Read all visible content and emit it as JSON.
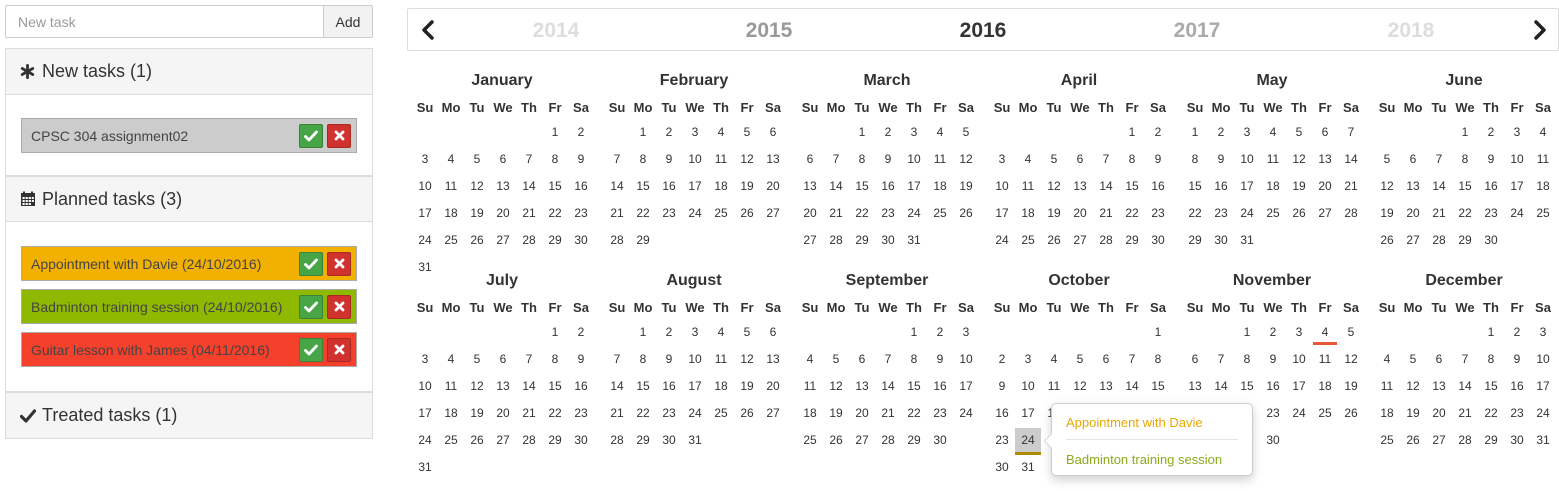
{
  "new_task": {
    "placeholder": "New task",
    "value": "",
    "add_label": "Add"
  },
  "sections": [
    {
      "heading": "New tasks (1)",
      "icon": "asterisk-icon",
      "tasks": [
        {
          "label": "CPSC 304 assignment02",
          "color": "#cccccc"
        }
      ]
    },
    {
      "heading": "Planned tasks (3)",
      "icon": "calendar-icon",
      "tasks": [
        {
          "label": "Appointment with Davie (24/10/2016)",
          "color": "#f2b100"
        },
        {
          "label": "Badminton training session (24/10/2016)",
          "color": "#8fb800"
        },
        {
          "label": "Guitar lesson with James (04/11/2016)",
          "color": "#f5402b"
        }
      ]
    },
    {
      "heading": "Treated tasks (1)",
      "icon": "checkmark-icon",
      "tasks": []
    }
  ],
  "year_nav": {
    "years": [
      "2014",
      "2015",
      "2016",
      "2017",
      "2018"
    ],
    "current": "2016"
  },
  "calendar": {
    "weekdays": [
      "Su",
      "Mo",
      "Tu",
      "We",
      "Th",
      "Fr",
      "Sa"
    ],
    "months": [
      {
        "name": "January",
        "offset": 5,
        "days": 31
      },
      {
        "name": "February",
        "offset": 1,
        "days": 29
      },
      {
        "name": "March",
        "offset": 2,
        "days": 31
      },
      {
        "name": "April",
        "offset": 5,
        "days": 30
      },
      {
        "name": "May",
        "offset": 0,
        "days": 31
      },
      {
        "name": "June",
        "offset": 3,
        "days": 30
      },
      {
        "name": "July",
        "offset": 5,
        "days": 31
      },
      {
        "name": "August",
        "offset": 1,
        "days": 31
      },
      {
        "name": "September",
        "offset": 4,
        "days": 30
      },
      {
        "name": "October",
        "offset": 6,
        "days": 31
      },
      {
        "name": "November",
        "offset": 2,
        "days": 30
      },
      {
        "name": "December",
        "offset": 4,
        "days": 31
      }
    ],
    "selected": {
      "month": "October",
      "day": 24
    },
    "marked": {
      "month": "November",
      "day": 4,
      "color": "#e8593b"
    }
  },
  "popover": {
    "items": [
      {
        "label": "Appointment with Davie",
        "color": "#e6a800"
      },
      {
        "label": "Badminton training session",
        "color": "#8aac1a"
      }
    ]
  }
}
